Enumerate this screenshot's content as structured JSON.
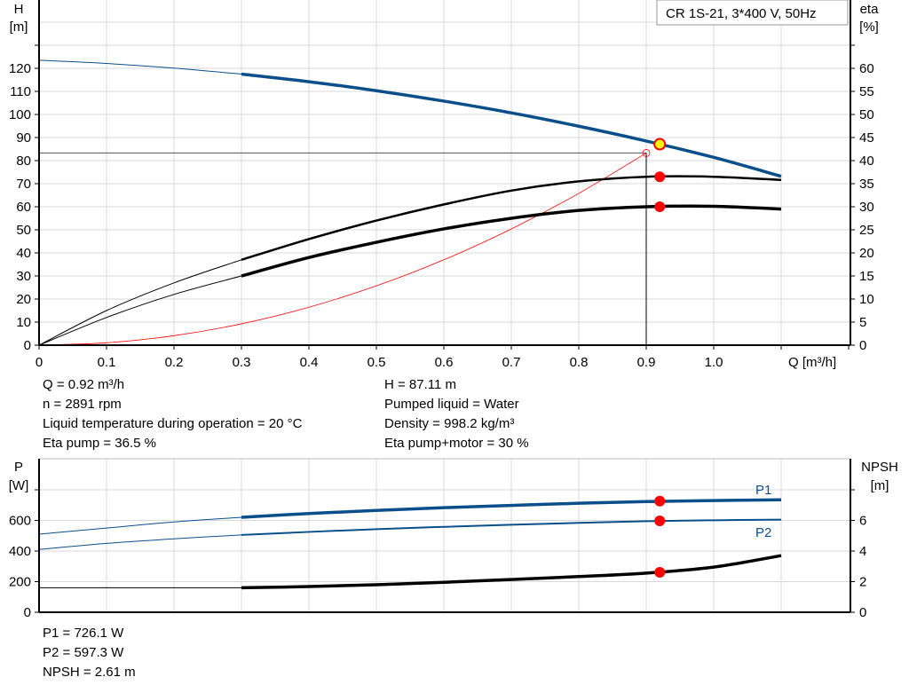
{
  "colors": {
    "head": "#0b4f8a",
    "eta": "#000000",
    "system": "#ff0000",
    "duty_point": "#ffff00",
    "marker": "#ff0000",
    "power": "#0b4f8a",
    "npsh": "#000000",
    "grid": "#d9d9d9"
  },
  "legend": {
    "title": "CR 1S-21, 3*400 V, 50Hz"
  },
  "chart_data": [
    {
      "type": "line",
      "xlabel": "Q [m³/h]",
      "ylabel_left": [
        "H",
        "[m]"
      ],
      "ylabel_right": [
        "eta",
        "[%]"
      ],
      "xlim": [
        0,
        1.2
      ],
      "ylim_left": [
        0,
        150
      ],
      "ylim_right": [
        0,
        75
      ],
      "xticks": [
        "0",
        "0.1",
        "0.2",
        "0.3",
        "0.4",
        "0.5",
        "0.6",
        "0.7",
        "0.8",
        "0.9",
        "1.0"
      ],
      "yticks_left": [
        "0",
        "10",
        "20",
        "30",
        "40",
        "50",
        "60",
        "70",
        "80",
        "90",
        "100",
        "110",
        "120"
      ],
      "yticks_right": [
        "0",
        "5",
        "10",
        "15",
        "20",
        "25",
        "30",
        "35",
        "40",
        "45",
        "50",
        "55",
        "60"
      ],
      "grid": true,
      "legend": "top-right",
      "series": [
        {
          "key": "head",
          "axis": "left",
          "x": [
            0,
            0.1,
            0.2,
            0.3,
            0.4,
            0.5,
            0.6,
            0.7,
            0.8,
            0.9,
            1.0,
            1.1
          ],
          "y": [
            123.5,
            122.1,
            120.1,
            117.5,
            114.2,
            110.3,
            105.8,
            100.7,
            94.9,
            88.5,
            81.4,
            73.2
          ]
        },
        {
          "key": "eta_pump",
          "axis": "right",
          "x": [
            0,
            0.1,
            0.2,
            0.3,
            0.4,
            0.5,
            0.6,
            0.7,
            0.8,
            0.9,
            1.0,
            1.1
          ],
          "y": [
            0,
            7.5,
            13.5,
            18.5,
            23,
            27,
            30.5,
            33.5,
            35.5,
            36.5,
            36.5,
            35.8
          ]
        },
        {
          "key": "eta_pump_motor",
          "axis": "right",
          "x": [
            0,
            0.1,
            0.2,
            0.3,
            0.4,
            0.5,
            0.6,
            0.7,
            0.8,
            0.9,
            1.0,
            1.1
          ],
          "y": [
            0,
            6,
            11,
            15,
            19,
            22.3,
            25.2,
            27.5,
            29.2,
            30,
            30.1,
            29.5
          ]
        },
        {
          "key": "system",
          "axis": "left",
          "x": [
            0,
            0.1,
            0.2,
            0.3,
            0.4,
            0.5,
            0.6,
            0.7,
            0.8,
            0.9
          ],
          "y": [
            0,
            1.03,
            4.11,
            9.26,
            16.45,
            25.7,
            37.0,
            50.4,
            65.8,
            83.3
          ]
        }
      ],
      "duty_point": {
        "q": 0.92,
        "h": 87.11,
        "eta_pump": 36.5,
        "eta_pump_motor": 30
      },
      "system_point": {
        "q": 0.9,
        "h": 83.3
      }
    },
    {
      "type": "line",
      "ylabel_left": [
        "P",
        "[W]"
      ],
      "ylabel_right": [
        "NPSH",
        "[m]"
      ],
      "xlim": [
        0,
        1.2
      ],
      "ylim_left": [
        0,
        1000
      ],
      "ylim_right": [
        0,
        10
      ],
      "yticks_left": [
        "0",
        "200",
        "400",
        "600"
      ],
      "yticks_right": [
        "0",
        "2",
        "4",
        "6"
      ],
      "grid": true,
      "series": [
        {
          "key": "p1",
          "name": "P1",
          "axis": "left",
          "x": [
            0,
            0.1,
            0.2,
            0.3,
            0.4,
            0.5,
            0.6,
            0.7,
            0.8,
            0.9,
            1.0,
            1.1
          ],
          "y": [
            510,
            550,
            590,
            620,
            645,
            665,
            683,
            698,
            712,
            723,
            730,
            735
          ]
        },
        {
          "key": "p2",
          "name": "P2",
          "axis": "left",
          "x": [
            0,
            0.1,
            0.2,
            0.3,
            0.4,
            0.5,
            0.6,
            0.7,
            0.8,
            0.9,
            1.0,
            1.1
          ],
          "y": [
            410,
            450,
            480,
            505,
            525,
            543,
            558,
            572,
            584,
            595,
            601,
            605
          ]
        },
        {
          "key": "npsh",
          "axis": "right",
          "x": [
            0,
            0.3,
            0.4,
            0.5,
            0.6,
            0.7,
            0.8,
            0.9,
            1.0,
            1.1
          ],
          "y": [
            1.6,
            1.6,
            1.68,
            1.8,
            1.96,
            2.14,
            2.33,
            2.56,
            2.95,
            3.7
          ]
        }
      ],
      "duty_point": {
        "q": 0.92,
        "p1": 726.1,
        "p2": 597.3,
        "npsh": 2.61
      }
    }
  ],
  "info_top_left": [
    "Q = 0.92 m³/h",
    "n = 2891 rpm",
    "Liquid temperature during operation = 20 °C",
    "Eta pump = 36.5 %"
  ],
  "info_top_right": [
    "H = 87.11 m",
    "Pumped liquid = Water",
    "Density = 998.2 kg/m³",
    "Eta pump+motor = 30 %"
  ],
  "info_bottom": [
    "P1 = 726.1 W",
    "P2 = 597.3 W",
    "NPSH = 2.61 m"
  ]
}
